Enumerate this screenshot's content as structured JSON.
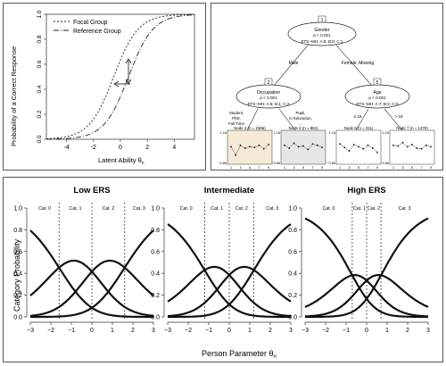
{
  "icc": {
    "legend": {
      "focal": "Focal Group",
      "reference": "Reference Group"
    },
    "ylabel": "Probability of a Correct Response",
    "xlabel": "Latent Ability θ",
    "xlabel_sub": "n",
    "xticks": [
      "-4",
      "-2",
      "0",
      "2",
      "4"
    ],
    "yticks": [
      "0.0",
      "0.2",
      "0.4",
      "0.6",
      "0.8",
      "1.0"
    ]
  },
  "tree": {
    "root": {
      "id": "1",
      "var": "Gender",
      "p": "p < 0.001",
      "ets": "ETS−MH: A:8; B:0; C:1"
    },
    "edge_root_left": "Male",
    "edge_root_right": "Female, Missing",
    "node2": {
      "id": "2",
      "var": "Occupation",
      "p": "p < 0.001",
      "ets": "ETS−MH: A:6; B:1; C:2"
    },
    "node5": {
      "id": "5",
      "var": "Age",
      "p": "p < 0.001",
      "ets": "ETS−MH: A:7; B:2; C:0"
    },
    "edge2_left": [
      "Student,",
      "PhD,",
      "Full Time"
    ],
    "edge2_right": [
      "Pupil,",
      "In Education,",
      "..."
    ],
    "edge5_left": "≤ 18",
    "edge5_right": "> 18",
    "leaves": [
      {
        "label": "Node 3 (n = 1866)",
        "ymax": "1.18",
        "ymin": "−0.86",
        "xt": [
          "1",
          "3",
          "5",
          "7",
          "9"
        ],
        "values": [
          0.2,
          -0.4,
          0.3,
          0.1,
          0.2,
          0.15,
          0.3,
          0.05,
          0.35
        ]
      },
      {
        "label": "Node 4 (n = 884)",
        "ymax": "1.18",
        "ymin": "−0.86",
        "xt": [
          "1",
          "3",
          "5",
          "7",
          "9"
        ],
        "values": [
          0.3,
          0.1,
          0.45,
          0.2,
          0.25,
          0.0,
          0.4,
          0.3,
          0.15
        ]
      },
      {
        "label": "Node 6 (n = 311)",
        "ymax": "1.18",
        "ymin": "−0.86",
        "xt": [
          "1",
          "3",
          "5",
          "7",
          "9"
        ],
        "values": [
          0.4,
          0.15,
          -0.1,
          0.35,
          0.2,
          0.05,
          0.3,
          0.1,
          -0.2
        ]
      },
      {
        "label": "Node 7 (n = 1378)",
        "ymax": "1.18",
        "ymin": "−0.86",
        "xt": [
          "1",
          "3",
          "5",
          "7",
          "9"
        ],
        "values": [
          0.3,
          0.25,
          0.5,
          0.2,
          0.35,
          0.1,
          0.05,
          0.3,
          0.2
        ]
      }
    ]
  },
  "ers": {
    "titles": [
      "Low ERS",
      "Intermediate",
      "High ERS"
    ],
    "ylabel": "Category Probability",
    "xlabel": "Person Parameter θ",
    "xlabel_sub": "n",
    "xticks": [
      "−3",
      "−2",
      "−1",
      "0",
      "1",
      "2",
      "3"
    ],
    "yticks": [
      "0.0",
      "0.2",
      "0.4",
      "0.6",
      "0.8",
      "1.0"
    ],
    "cat_labels": [
      "Cat. 0",
      "Cat. 1",
      "Cat. 2",
      "Cat. 3"
    ]
  },
  "chart_data": [
    {
      "type": "line",
      "title": "",
      "xlabel": "Latent Ability θn",
      "ylabel": "Probability of a Correct Response",
      "xlim": [
        -5.5,
        5.5
      ],
      "ylim": [
        0,
        1
      ],
      "series": [
        {
          "name": "Focal Group",
          "model": "logistic",
          "a": 1.1,
          "b": -0.5
        },
        {
          "name": "Reference Group",
          "model": "logistic",
          "a": 1.1,
          "b": 0.6
        }
      ]
    },
    {
      "type": "line",
      "title": "Low ERS",
      "xlim": [
        -3,
        3
      ],
      "ylim": [
        0,
        1
      ],
      "thresholds": [
        -1.6,
        0.0,
        1.6
      ],
      "model": "partial-credit",
      "series_names": [
        "Cat. 0",
        "Cat. 1",
        "Cat. 2",
        "Cat. 3"
      ]
    },
    {
      "type": "line",
      "title": "Intermediate",
      "xlim": [
        -3,
        3
      ],
      "ylim": [
        0,
        1
      ],
      "thresholds": [
        -1.2,
        0.0,
        1.2
      ],
      "model": "partial-credit",
      "series_names": [
        "Cat. 0",
        "Cat. 1",
        "Cat. 2",
        "Cat. 3"
      ]
    },
    {
      "type": "line",
      "title": "High ERS",
      "xlim": [
        -3,
        3
      ],
      "ylim": [
        0,
        1
      ],
      "thresholds": [
        -0.7,
        0.0,
        0.7
      ],
      "model": "partial-credit",
      "series_names": [
        "Cat. 0",
        "Cat. 1",
        "Cat. 2",
        "Cat. 3"
      ]
    }
  ]
}
